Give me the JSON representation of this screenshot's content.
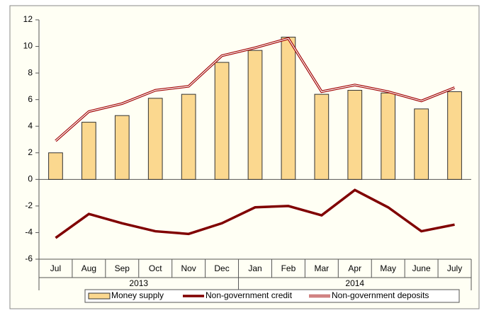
{
  "chart_data": {
    "type": "bar",
    "categories": [
      "Jul",
      "Aug",
      "Sep",
      "Oct",
      "Nov",
      "Dec",
      "Jan",
      "Feb",
      "Mar",
      "Apr",
      "May",
      "June",
      "July"
    ],
    "groups": [
      {
        "label": "2013",
        "span": 6
      },
      {
        "label": "2014",
        "span": 7
      }
    ],
    "series": [
      {
        "name": "Money supply",
        "type": "bar",
        "color": "#fbd88f",
        "values": [
          2.0,
          4.3,
          4.8,
          6.1,
          6.4,
          8.8,
          9.7,
          10.7,
          6.4,
          6.7,
          6.5,
          5.3,
          6.6
        ]
      },
      {
        "name": "Non-government credit",
        "type": "line",
        "color": "#800000",
        "values": [
          -4.4,
          -2.6,
          -3.3,
          -3.9,
          -4.1,
          -3.3,
          -2.1,
          -2.0,
          -2.7,
          -0.8,
          -2.1,
          -3.9,
          -3.4
        ]
      },
      {
        "name": "Non-government deposits",
        "type": "double-line",
        "color": "#a00000",
        "values": [
          2.9,
          5.1,
          5.7,
          6.7,
          7.0,
          9.3,
          9.9,
          10.6,
          6.6,
          7.1,
          6.6,
          5.9,
          6.9
        ]
      }
    ],
    "ylim": [
      -6,
      12
    ],
    "yticks": [
      -6,
      -4,
      -2,
      0,
      2,
      4,
      6,
      8,
      10,
      12
    ],
    "legend": "bottom"
  }
}
